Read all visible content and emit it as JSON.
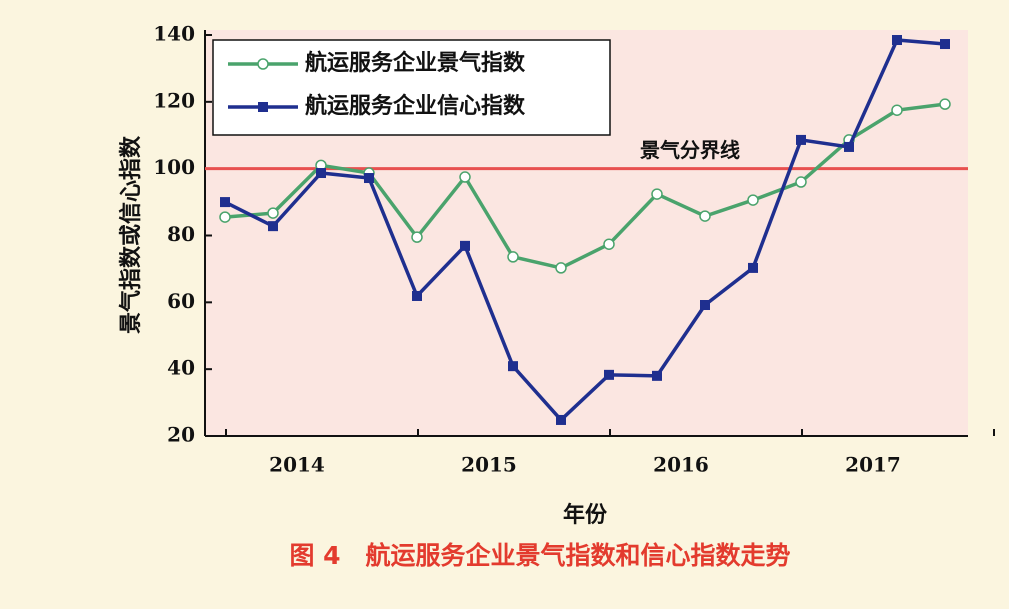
{
  "chart_data": {
    "type": "line",
    "title": "图 4　航运服务企业景气指数和信心指数走势",
    "x_label": "年份",
    "y_label": "景气指数或信心指数",
    "categories": [
      null,
      "2014",
      null,
      null,
      null,
      "2015",
      null,
      null,
      null,
      "2016",
      null,
      null,
      null,
      "2017",
      null,
      null
    ],
    "series": [
      {
        "name": "航运服务企业景气指数",
        "color": "#4aa36c",
        "marker": "open-circle",
        "values": [
          85.5,
          86.7,
          101,
          98.7,
          79.5,
          97.5,
          73.6,
          70.3,
          77.4,
          92.4,
          85.8,
          90.6,
          96,
          108.6,
          117.5,
          119.3
        ]
      },
      {
        "name": "航运服务企业信心指数",
        "color": "#1f2f8f",
        "marker": "filled-square",
        "values": [
          90,
          82.8,
          98.7,
          97.2,
          61.9,
          76.9,
          40.9,
          24.8,
          38.3,
          38,
          59.2,
          70.3,
          108.6,
          106.5,
          138.5,
          137.3
        ]
      }
    ],
    "reference_line": {
      "value": 100,
      "label": "景气分界线",
      "color": "#e8504f"
    },
    "ylim": [
      20,
      140
    ],
    "yticks": [
      20,
      40,
      60,
      80,
      100,
      120,
      140
    ],
    "legend": "upper-left"
  }
}
